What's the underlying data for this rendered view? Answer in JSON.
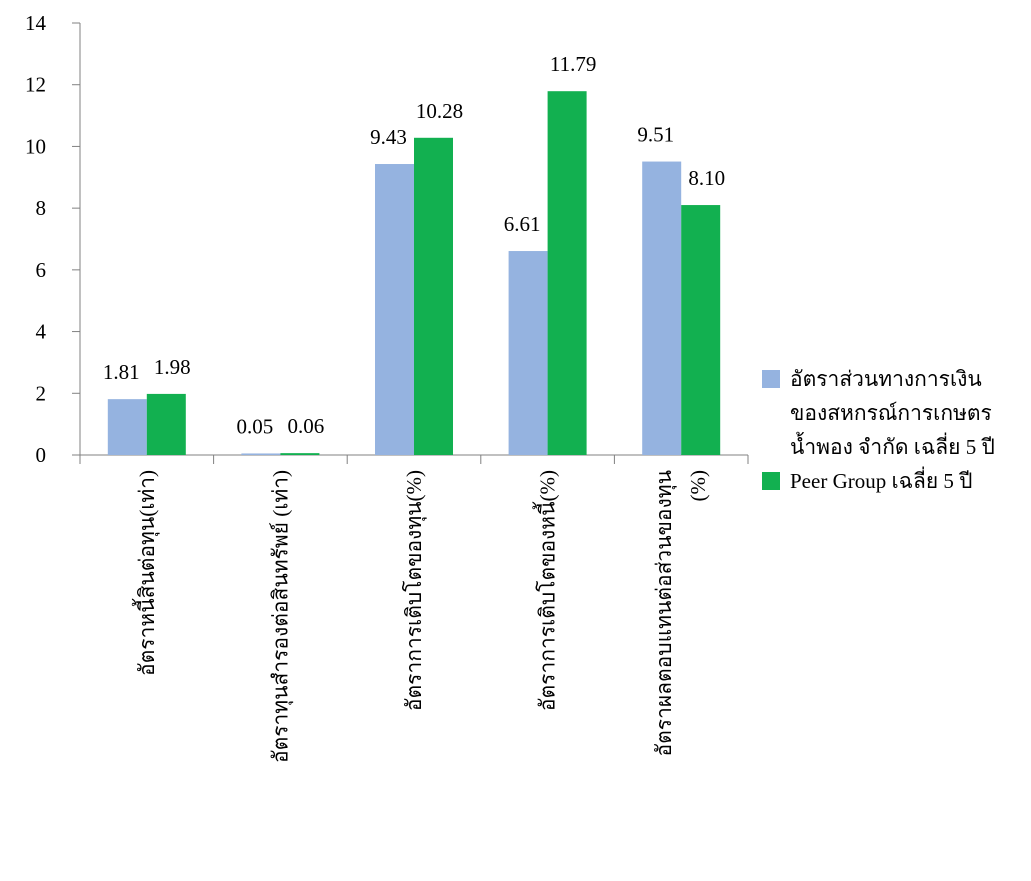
{
  "chart_data": {
    "type": "bar",
    "categories": [
      [
        "อัตราหนี้สินต่อทุน(เท่า)"
      ],
      [
        "อัตราทุนสำรองต่อสินทรัพย์ (เท่า)"
      ],
      [
        "อัตราการเติบโตของทุน(%)"
      ],
      [
        "อัตราการเติบโตของหนี้(%)"
      ],
      [
        "อัตราผลตอบแทนต่อส่วนของทุน",
        "(%)"
      ]
    ],
    "series": [
      {
        "name": [
          "อัตราส่วนทางการเงิน",
          "ของสหกรณ์การเกษตร",
          "น้ำพอง จำกัด เฉลี่ย 5 ปี"
        ],
        "color": "#95B3E0",
        "values": [
          1.81,
          0.05,
          9.43,
          6.61,
          9.51
        ],
        "labels": [
          "1.81",
          "0.05",
          "9.43",
          "6.61",
          "9.51"
        ]
      },
      {
        "name": [
          "Peer Group เฉลี่ย 5 ปี"
        ],
        "color": "#12B050",
        "values": [
          1.98,
          0.06,
          10.28,
          11.79,
          8.1
        ],
        "labels": [
          "1.98",
          "0.06",
          "10.28",
          "11.79",
          "8.10"
        ]
      }
    ],
    "yticks": [
      "0",
      "2",
      "4",
      "6",
      "8",
      "10",
      "12",
      "14"
    ],
    "ylim": [
      0,
      14
    ],
    "grid": false,
    "legend_position": "right"
  }
}
